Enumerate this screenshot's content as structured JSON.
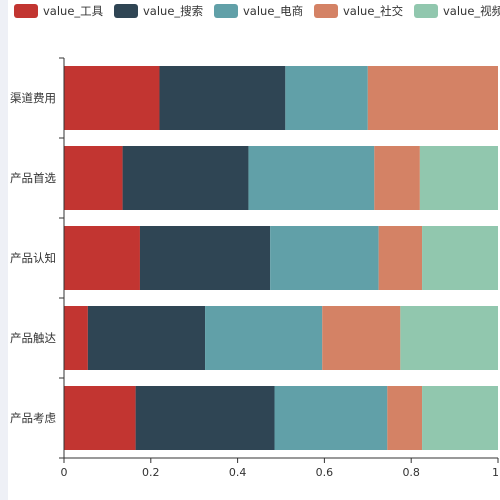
{
  "chart_data": {
    "type": "bar",
    "orientation": "horizontal",
    "stacked": true,
    "categories": [
      "产品考虑",
      "产品触达",
      "产品认知",
      "产品首选",
      "渠道费用"
    ],
    "series": [
      {
        "name": "value_工具",
        "color": "#c23531",
        "values": [
          0.165,
          0.055,
          0.175,
          0.135,
          0.22
        ]
      },
      {
        "name": "value_搜索",
        "color": "#2f4554",
        "values": [
          0.32,
          0.27,
          0.3,
          0.29,
          0.29
        ]
      },
      {
        "name": "value_电商",
        "color": "#61a0a8",
        "values": [
          0.26,
          0.27,
          0.25,
          0.29,
          0.19
        ]
      },
      {
        "name": "value_社交",
        "color": "#d48265",
        "values": [
          0.08,
          0.18,
          0.1,
          0.105,
          0.3
        ]
      },
      {
        "name": "value_视频",
        "color": "#91c7ae",
        "values": [
          0.175,
          0.225,
          0.175,
          0.18,
          0.0
        ]
      }
    ],
    "xaxis": {
      "ticks": [
        0,
        0.2,
        0.4,
        0.6,
        0.8,
        1
      ],
      "tick_labels": [
        "0",
        "0.2",
        "0.4",
        "0.6",
        "0.8",
        "1"
      ],
      "range": [
        0,
        1
      ]
    },
    "grid": false,
    "legend": "top"
  }
}
